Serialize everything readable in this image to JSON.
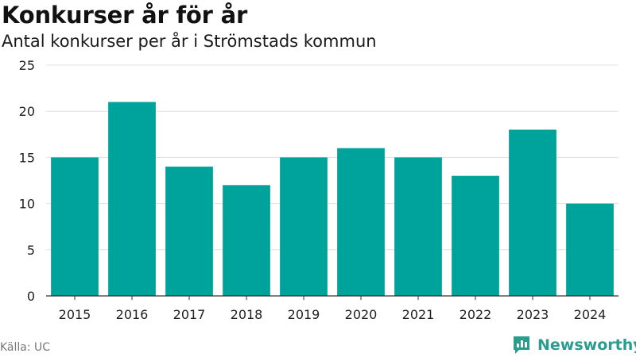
{
  "header": {
    "title": "Konkurser år för år",
    "subtitle": "Antal konkurser per år i Strömstads kommun"
  },
  "footer": {
    "source": "Källa: UC",
    "brand": "Newsworthy"
  },
  "colors": {
    "bar": "#00a39b",
    "brand": "#2a9d8f"
  },
  "chart_data": {
    "type": "bar",
    "categories": [
      "2015",
      "2016",
      "2017",
      "2018",
      "2019",
      "2020",
      "2021",
      "2022",
      "2023",
      "2024"
    ],
    "values": [
      15,
      21,
      14,
      12,
      15,
      16,
      15,
      13,
      18,
      10
    ],
    "ylim": [
      0,
      25
    ],
    "yticks": [
      0,
      5,
      10,
      15,
      20,
      25
    ],
    "grid": true,
    "legend": "none"
  }
}
